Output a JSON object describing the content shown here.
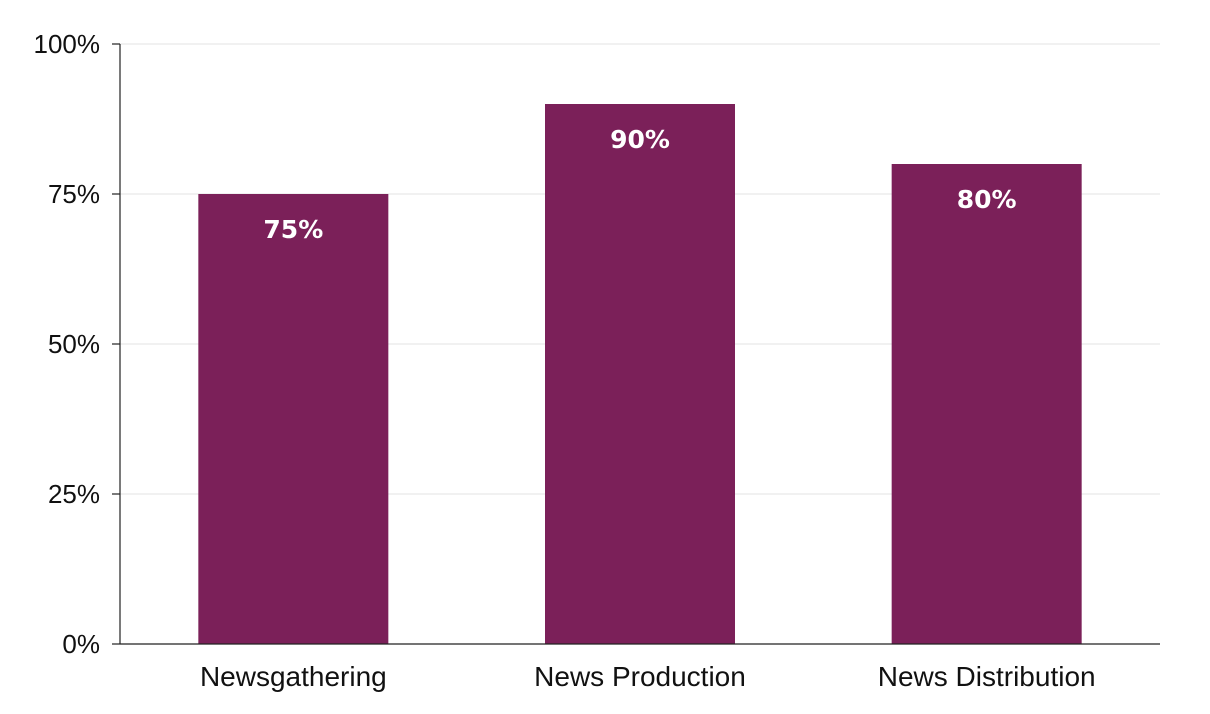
{
  "chart_data": {
    "type": "bar",
    "categories": [
      "Newsgathering",
      "News Production",
      "News Distribution"
    ],
    "values": [
      75,
      90,
      80
    ],
    "data_labels": [
      "75%",
      "90%",
      "80%"
    ],
    "title": "",
    "xlabel": "",
    "ylabel": "",
    "ylim": [
      0,
      100
    ],
    "yticks": [
      0,
      25,
      50,
      75,
      100
    ],
    "ytick_labels": [
      "0%",
      "25%",
      "50%",
      "75%",
      "100%"
    ],
    "grid": true,
    "legend": "none",
    "colors": {
      "bar": "#7b2059",
      "data_label": "#ffffff",
      "grid": "#e3e3e3",
      "axis": "#222222"
    }
  }
}
